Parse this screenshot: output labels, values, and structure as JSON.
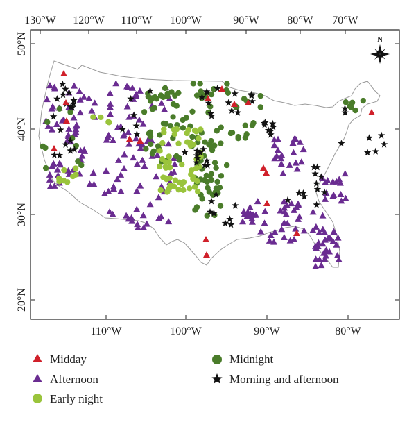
{
  "map": {
    "top_lon_labels": [
      "130°W",
      "120°W",
      "110°W",
      "100°W",
      "90°W",
      "80°W",
      "70°W"
    ],
    "bottom_lon_labels": [
      "110°W",
      "100°W",
      "90°W",
      "80°W"
    ],
    "lat_labels": [
      "50°N",
      "40°N",
      "30°N",
      "20°N"
    ],
    "north_label": "N",
    "colors": {
      "midday": "#d0202a",
      "afternoon": "#6a2c91",
      "early_night": "#9ac43c",
      "midnight": "#4a7c2a",
      "morning_afternoon": "#111111",
      "boundary": "#9a9a9a"
    }
  },
  "legend": [
    {
      "key": "midday",
      "label": "Midday",
      "marker": "triangle",
      "color": "#d0202a"
    },
    {
      "key": "afternoon",
      "label": "Afternoon",
      "marker": "triangle",
      "color": "#6a2c91"
    },
    {
      "key": "early_night",
      "label": "Early night",
      "marker": "circle",
      "color": "#9ac43c"
    },
    {
      "key": "midnight",
      "label": "Midnight",
      "marker": "circle",
      "color": "#4a7c2a"
    },
    {
      "key": "morning_afternoon",
      "label": "Morning and afternoon",
      "marker": "star",
      "color": "#111111"
    }
  ]
}
